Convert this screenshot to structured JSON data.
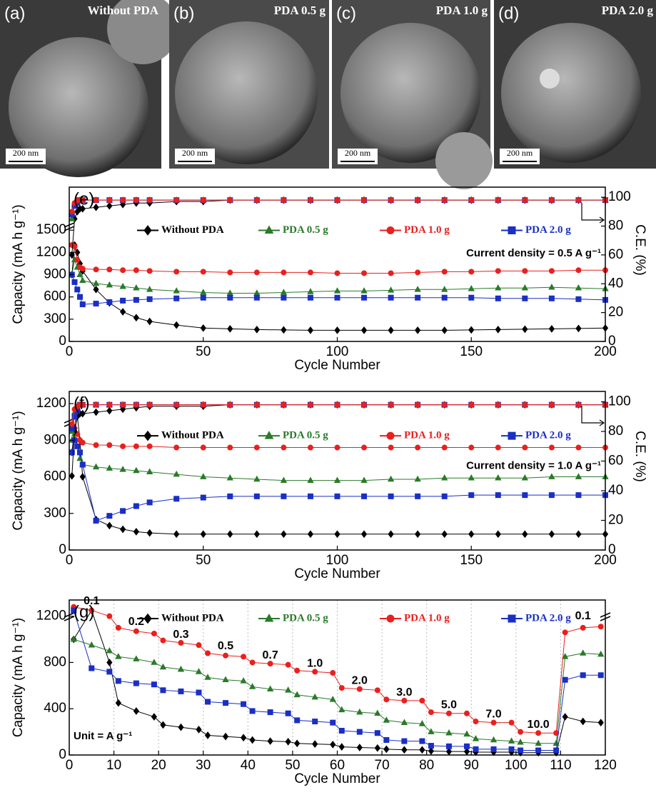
{
  "images": [
    {
      "label": "(a)",
      "title": "Without PDA",
      "scale_bar": "200 nm"
    },
    {
      "label": "(b)",
      "title": "PDA 0.5 g",
      "scale_bar": "200 nm"
    },
    {
      "label": "(c)",
      "title": "PDA 1.0 g",
      "scale_bar": "200 nm"
    },
    {
      "label": "(d)",
      "title": "PDA 2.0 g",
      "scale_bar": "200 nm"
    }
  ],
  "chart_data": [
    {
      "type": "line",
      "label": "(e)",
      "xlabel": "Cycle Number",
      "ylabel": "Capacity (mA h g⁻¹)",
      "y2label": "C.E. (%)",
      "annotations": [
        "Current density = 0.5 A g⁻¹"
      ],
      "legend": "top",
      "grid": false,
      "xlim": [
        0,
        200
      ],
      "xticks": [
        0,
        50,
        100,
        150,
        200
      ],
      "ylim": [
        0,
        2080
      ],
      "yticks": [
        0,
        300,
        600,
        900,
        1200,
        1500
      ],
      "y2lim": [
        0,
        107
      ],
      "y2ticks": [
        0,
        20,
        40,
        60,
        80,
        100
      ],
      "x": [
        1,
        2,
        3,
        4,
        5,
        10,
        15,
        20,
        25,
        30,
        40,
        50,
        60,
        70,
        80,
        90,
        100,
        110,
        120,
        130,
        140,
        150,
        160,
        170,
        180,
        190,
        200
      ],
      "series": [
        {
          "name": "Without PDA",
          "color": "#000000",
          "marker": "diamond",
          "values": [
            900,
            1300,
            1200,
            1050,
            950,
            700,
            520,
            400,
            320,
            270,
            220,
            180,
            170,
            160,
            155,
            150,
            150,
            150,
            150,
            150,
            150,
            155,
            160,
            165,
            170,
            175,
            180
          ]
        },
        {
          "name": "PDA 0.5 g",
          "color": "#2a7a2a",
          "marker": "triangle",
          "values": [
            900,
            1100,
            1000,
            900,
            820,
            780,
            760,
            740,
            720,
            700,
            680,
            660,
            650,
            650,
            660,
            670,
            680,
            680,
            690,
            700,
            700,
            710,
            720,
            720,
            730,
            720,
            710
          ]
        },
        {
          "name": "PDA 1.0 g",
          "color": "#e8201e",
          "marker": "circle",
          "values": [
            1300,
            1280,
            1100,
            1000,
            980,
            970,
            970,
            960,
            960,
            950,
            940,
            940,
            930,
            930,
            930,
            930,
            920,
            920,
            920,
            930,
            940,
            940,
            950,
            950,
            950,
            960,
            960
          ]
        },
        {
          "name": "PDA 2.0 g",
          "color": "#1a2fc4",
          "marker": "square",
          "values": [
            900,
            800,
            700,
            600,
            500,
            510,
            530,
            550,
            560,
            570,
            580,
            590,
            590,
            590,
            590,
            590,
            590,
            590,
            590,
            590,
            590,
            590,
            580,
            580,
            580,
            570,
            560
          ]
        },
        {
          "color": "#000000",
          "marker": "diamond",
          "axis": "y2",
          "values": [
            60,
            85,
            90,
            92,
            92,
            93,
            94,
            95,
            96,
            96,
            97,
            97,
            98,
            98,
            98,
            98,
            98,
            98,
            98,
            98,
            98,
            98,
            98,
            98,
            98,
            98,
            98
          ]
        },
        {
          "color": "#2a7a2a",
          "marker": "triangle",
          "axis": "y2",
          "values": [
            85,
            95,
            97,
            98,
            98,
            98,
            98,
            98,
            98,
            98,
            98,
            98,
            98,
            98,
            98,
            98,
            98,
            98,
            98,
            98,
            98,
            98,
            98,
            98,
            98,
            98,
            98
          ]
        },
        {
          "color": "#1a2fc4",
          "marker": "square",
          "axis": "y2",
          "values": [
            88,
            94,
            96,
            98,
            98,
            98,
            98,
            98,
            98,
            98,
            98,
            98,
            98,
            98,
            98,
            98,
            98,
            98,
            98,
            98,
            98,
            98,
            98,
            98,
            98,
            98,
            98
          ]
        },
        {
          "color": "#e8201e",
          "marker": "circle",
          "axis": "y2",
          "values": [
            90,
            96,
            98,
            98,
            98,
            98,
            98,
            98,
            98,
            98,
            98,
            98,
            98,
            98,
            98,
            98,
            98,
            98,
            98,
            98,
            98,
            98,
            98,
            98,
            98,
            98,
            98
          ]
        }
      ]
    },
    {
      "type": "line",
      "label": "(f)",
      "xlabel": "Cycle Number",
      "ylabel": "Capacity (mA h g⁻¹)",
      "y2label": "C.E. (%)",
      "annotations": [
        "Current density = 1.0 A g⁻¹"
      ],
      "legend": "top",
      "grid": false,
      "xlim": [
        0,
        200
      ],
      "xticks": [
        0,
        50,
        100,
        150,
        200
      ],
      "ylim": [
        0,
        1300
      ],
      "yticks": [
        0,
        300,
        600,
        900,
        1200
      ],
      "y2lim": [
        0,
        107
      ],
      "y2ticks": [
        0,
        20,
        40,
        60,
        80,
        100
      ],
      "x": [
        1,
        2,
        3,
        4,
        5,
        10,
        15,
        20,
        25,
        30,
        40,
        50,
        60,
        70,
        80,
        90,
        100,
        110,
        120,
        130,
        140,
        150,
        160,
        170,
        180,
        190,
        200
      ],
      "series": [
        {
          "name": "Without PDA",
          "color": "#000000",
          "marker": "diamond",
          "values": [
            800,
            1000,
            1100,
            900,
            600,
            250,
            200,
            170,
            150,
            140,
            130,
            130,
            130,
            130,
            130,
            130,
            130,
            130,
            130,
            130,
            130,
            130,
            130,
            130,
            130,
            130,
            130
          ]
        },
        {
          "name": "PDA 0.5 g",
          "color": "#2a7a2a",
          "marker": "triangle",
          "values": [
            900,
            950,
            850,
            750,
            700,
            680,
            670,
            660,
            650,
            640,
            620,
            600,
            590,
            580,
            570,
            570,
            570,
            570,
            580,
            580,
            590,
            590,
            590,
            590,
            600,
            600,
            600
          ]
        },
        {
          "name": "PDA 1.0 g",
          "color": "#e8201e",
          "marker": "circle",
          "values": [
            1000,
            1100,
            950,
            900,
            880,
            860,
            860,
            850,
            850,
            850,
            840,
            840,
            840,
            840,
            840,
            840,
            840,
            840,
            840,
            840,
            840,
            840,
            840,
            840,
            840,
            840,
            840
          ]
        },
        {
          "name": "PDA 2.0 g",
          "color": "#1a2fc4",
          "marker": "square",
          "values": [
            800,
            900,
            850,
            800,
            700,
            240,
            280,
            320,
            360,
            390,
            420,
            430,
            440,
            440,
            440,
            440,
            440,
            440,
            440,
            440,
            440,
            450,
            450,
            450,
            450,
            450,
            450
          ]
        },
        {
          "color": "#000000",
          "marker": "diamond",
          "axis": "y2",
          "values": [
            50,
            80,
            90,
            92,
            92,
            93,
            94,
            95,
            96,
            97,
            97,
            97,
            98,
            98,
            98,
            98,
            98,
            98,
            98,
            98,
            98,
            98,
            98,
            98,
            98,
            98,
            98
          ]
        },
        {
          "color": "#2a7a2a",
          "marker": "triangle",
          "axis": "y2",
          "values": [
            80,
            93,
            96,
            98,
            98,
            98,
            98,
            98,
            98,
            98,
            98,
            98,
            98,
            98,
            98,
            98,
            98,
            98,
            98,
            98,
            98,
            98,
            98,
            98,
            98,
            98,
            98
          ]
        },
        {
          "color": "#1a2fc4",
          "marker": "square",
          "axis": "y2",
          "values": [
            82,
            90,
            94,
            98,
            98,
            98,
            98,
            98,
            98,
            98,
            98,
            98,
            98,
            98,
            98,
            98,
            98,
            98,
            98,
            98,
            98,
            98,
            98,
            98,
            98,
            98,
            98
          ]
        },
        {
          "color": "#e8201e",
          "marker": "circle",
          "axis": "y2",
          "values": [
            85,
            95,
            97,
            98,
            98,
            98,
            98,
            98,
            98,
            98,
            98,
            98,
            98,
            98,
            98,
            98,
            98,
            98,
            98,
            98,
            98,
            98,
            98,
            98,
            98,
            98,
            98
          ]
        }
      ]
    },
    {
      "type": "line",
      "label": "(g)",
      "xlabel": "Cycle Number",
      "ylabel": "Capacity (mA h g⁻¹)",
      "annotations": [
        "Unit = A g⁻¹"
      ],
      "legend": "top",
      "grid": "x",
      "xlim": [
        0,
        120
      ],
      "xticks": [
        0,
        10,
        20,
        30,
        40,
        50,
        60,
        70,
        80,
        90,
        100,
        110,
        120
      ],
      "ylim": [
        0,
        1340
      ],
      "yticks": [
        0,
        400,
        800,
        1200
      ],
      "x": [
        1,
        5,
        9,
        11,
        15,
        19,
        21,
        25,
        29,
        31,
        35,
        39,
        41,
        45,
        49,
        51,
        55,
        59,
        61,
        65,
        69,
        71,
        75,
        79,
        81,
        85,
        89,
        91,
        95,
        99,
        101,
        105,
        109,
        111,
        115,
        119
      ],
      "series": [
        {
          "name": "Without PDA",
          "color": "#000000",
          "marker": "diamond",
          "values": [
            1000,
            1250,
            800,
            450,
            380,
            330,
            260,
            240,
            220,
            170,
            160,
            150,
            130,
            120,
            115,
            100,
            95,
            90,
            70,
            65,
            60,
            50,
            45,
            45,
            35,
            30,
            30,
            25,
            25,
            25,
            20,
            20,
            20,
            330,
            290,
            280
          ]
        },
        {
          "name": "PDA 0.5 g",
          "color": "#2a7a2a",
          "marker": "triangle",
          "values": [
            1000,
            950,
            900,
            850,
            830,
            800,
            760,
            740,
            720,
            670,
            650,
            640,
            590,
            570,
            560,
            520,
            500,
            480,
            390,
            370,
            360,
            300,
            280,
            270,
            200,
            190,
            180,
            140,
            130,
            120,
            110,
            100,
            100,
            850,
            880,
            870
          ]
        },
        {
          "name": "PDA 1.0 g",
          "color": "#e8201e",
          "marker": "circle",
          "values": [
            1280,
            1250,
            1200,
            1100,
            1070,
            1050,
            990,
            970,
            950,
            880,
            860,
            850,
            800,
            790,
            780,
            730,
            720,
            710,
            580,
            570,
            560,
            480,
            470,
            470,
            370,
            360,
            360,
            290,
            280,
            280,
            200,
            190,
            190,
            1060,
            1100,
            1110
          ]
        },
        {
          "name": "PDA 2.0 g",
          "color": "#1a2fc4",
          "marker": "square",
          "values": [
            1250,
            750,
            720,
            640,
            620,
            610,
            560,
            550,
            540,
            460,
            450,
            440,
            380,
            370,
            360,
            300,
            290,
            280,
            210,
            200,
            190,
            130,
            120,
            120,
            80,
            75,
            75,
            50,
            50,
            50,
            40,
            40,
            40,
            650,
            690,
            690
          ]
        }
      ],
      "rate_labels": [
        {
          "text": "0.1",
          "x": 5,
          "y": 1330
        },
        {
          "text": "0.2",
          "x": 15,
          "y": 1150
        },
        {
          "text": "0.3",
          "x": 25,
          "y": 1040
        },
        {
          "text": "0.5",
          "x": 35,
          "y": 940
        },
        {
          "text": "0.7",
          "x": 45,
          "y": 860
        },
        {
          "text": "1.0",
          "x": 55,
          "y": 790
        },
        {
          "text": "2.0",
          "x": 65,
          "y": 640
        },
        {
          "text": "3.0",
          "x": 75,
          "y": 540
        },
        {
          "text": "5.0",
          "x": 85,
          "y": 430
        },
        {
          "text": "7.0",
          "x": 95,
          "y": 350
        },
        {
          "text": "10.0",
          "x": 105,
          "y": 260
        },
        {
          "text": "0.1",
          "x": 115,
          "y": 1200
        }
      ]
    }
  ]
}
